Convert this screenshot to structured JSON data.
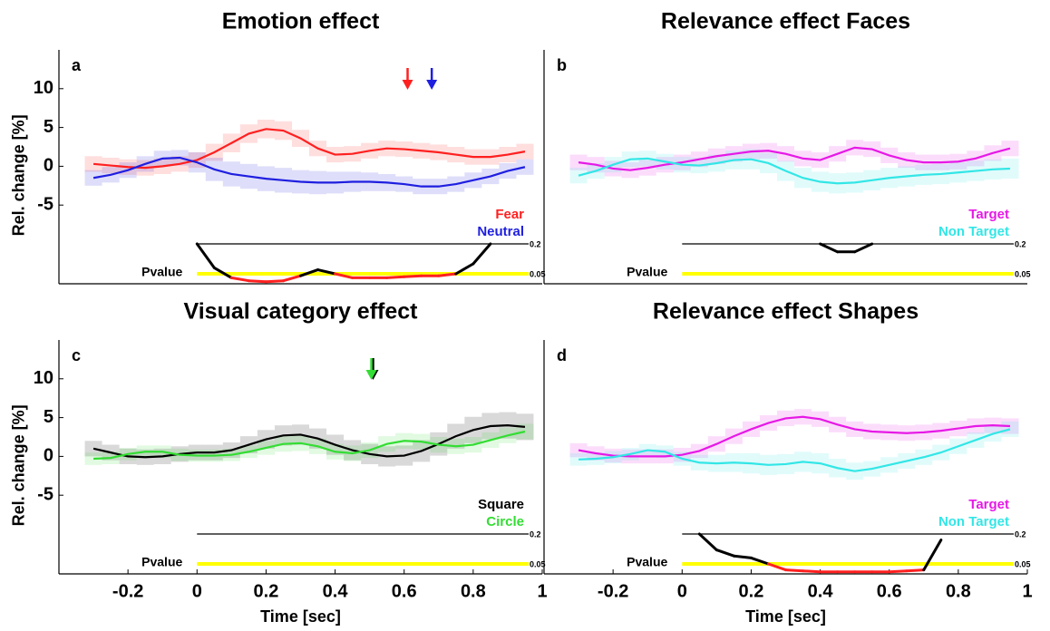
{
  "chart_data": [
    {
      "type": "line",
      "title": "Emotion effect",
      "label": "a",
      "ylabel": "Rel. change [%]",
      "xlim": [
        -0.4,
        1.0
      ],
      "ylim": [
        -10,
        15
      ],
      "yticks": [
        -5,
        0,
        5,
        10
      ],
      "x": [
        -0.3,
        -0.25,
        -0.2,
        -0.15,
        -0.1,
        -0.05,
        0,
        0.05,
        0.1,
        0.15,
        0.2,
        0.25,
        0.3,
        0.35,
        0.4,
        0.45,
        0.5,
        0.55,
        0.6,
        0.65,
        0.7,
        0.75,
        0.8,
        0.85,
        0.9,
        0.95
      ],
      "series": [
        {
          "name": "Fear",
          "color": "#ff2020",
          "values": [
            0.3,
            0.1,
            -0.1,
            -0.2,
            0,
            0.3,
            0.8,
            1.8,
            3,
            4.2,
            4.8,
            4.6,
            3.6,
            2.3,
            1.5,
            1.6,
            2,
            2.3,
            2.2,
            2,
            1.8,
            1.5,
            1.2,
            1.2,
            1.5,
            1.9
          ],
          "errors": [
            1,
            1,
            1,
            1,
            1,
            1,
            1,
            1.1,
            1.2,
            1.2,
            1.2,
            1.2,
            1.1,
            1,
            1,
            1,
            1,
            1,
            1,
            1,
            1,
            1,
            1,
            1,
            1,
            1
          ]
        },
        {
          "name": "Neutral",
          "color": "#1f1fe0",
          "values": [
            -1.5,
            -1.1,
            -0.5,
            0.3,
            1,
            1.1,
            0.5,
            -0.4,
            -1,
            -1.3,
            -1.6,
            -1.8,
            -2,
            -2.1,
            -2.1,
            -2,
            -2,
            -2.1,
            -2.3,
            -2.6,
            -2.6,
            -2.3,
            -1.8,
            -1.3,
            -0.6,
            -0.1
          ],
          "errors": [
            1,
            1,
            1,
            1,
            1,
            1,
            1.3,
            1.5,
            1.6,
            1.6,
            1.6,
            1.6,
            1.5,
            1.5,
            1.4,
            1.3,
            1.2,
            1.1,
            1,
            1,
            1,
            1,
            1,
            1,
            1,
            1
          ]
        }
      ],
      "pvalue": {
        "label": "Pvalue",
        "plim": [
          0.2,
          0
        ],
        "ticks": [
          0.2,
          0.05
        ],
        "line_colors": [
          "#000000",
          "#ffff00"
        ],
        "color": "#000000",
        "sig_color": "#ff2020",
        "values": [
          null,
          null,
          null,
          null,
          null,
          null,
          0.2,
          0.08,
          0.03,
          0.015,
          0.01,
          0.015,
          0.04,
          0.07,
          0.05,
          0.03,
          0.03,
          0.03,
          0.035,
          0.04,
          0.04,
          0.05,
          0.1,
          0.2,
          null,
          null
        ]
      },
      "arrows": [
        {
          "x": 0.61,
          "color": "#ff2020"
        },
        {
          "x": 0.68,
          "color": "#1f1fe0"
        }
      ]
    },
    {
      "type": "line",
      "title": "Relevance effect Faces",
      "label": "b",
      "xlim": [
        -0.4,
        1.0
      ],
      "ylim": [
        -10,
        15
      ],
      "x": [
        -0.3,
        -0.25,
        -0.2,
        -0.15,
        -0.1,
        -0.05,
        0,
        0.05,
        0.1,
        0.15,
        0.2,
        0.25,
        0.3,
        0.35,
        0.4,
        0.45,
        0.5,
        0.55,
        0.6,
        0.65,
        0.7,
        0.75,
        0.8,
        0.85,
        0.9,
        0.95
      ],
      "series": [
        {
          "name": "Target",
          "color": "#e619e6",
          "values": [
            0.5,
            0.2,
            -0.3,
            -0.5,
            -0.2,
            0.2,
            0.5,
            0.9,
            1.3,
            1.6,
            1.9,
            2,
            1.6,
            1,
            0.8,
            1.6,
            2.4,
            2.2,
            1.4,
            0.8,
            0.5,
            0.5,
            0.6,
            1,
            1.7,
            2.3
          ],
          "errors": [
            1,
            1,
            1,
            1,
            1,
            1,
            1,
            1,
            1,
            1,
            1,
            1,
            1,
            1,
            1,
            1,
            1,
            1,
            1,
            1,
            1,
            1,
            1,
            1,
            1,
            1
          ]
        },
        {
          "name": "Non Target",
          "color": "#33e6e6",
          "values": [
            -1.2,
            -0.6,
            0.2,
            0.9,
            1,
            0.6,
            0.2,
            0.1,
            0.4,
            0.8,
            0.9,
            0.4,
            -0.6,
            -1.5,
            -2,
            -2.2,
            -2.1,
            -1.8,
            -1.5,
            -1.3,
            -1.1,
            -1,
            -0.8,
            -0.6,
            -0.4,
            -0.3
          ],
          "errors": [
            1,
            1,
            1,
            1,
            1,
            1,
            1,
            1,
            1.1,
            1.2,
            1.3,
            1.3,
            1.3,
            1.3,
            1.3,
            1.3,
            1.3,
            1.3,
            1.3,
            1.3,
            1.3,
            1.3,
            1.3,
            1.3,
            1.3,
            1.3
          ]
        }
      ],
      "pvalue": {
        "label": "Pvalue",
        "plim": [
          0.2,
          0
        ],
        "ticks": [
          0.2,
          0.05
        ],
        "line_colors": [
          "#000000",
          "#ffff00"
        ],
        "color": "#000000",
        "sig_color": "#ff2020",
        "values": [
          null,
          null,
          null,
          null,
          null,
          null,
          null,
          null,
          null,
          null,
          null,
          null,
          null,
          null,
          0.2,
          0.16,
          0.16,
          0.2,
          null,
          null,
          null,
          null,
          null,
          null,
          null,
          null
        ]
      }
    },
    {
      "type": "line",
      "title": "Visual category effect",
      "label": "c",
      "ylabel": "Rel. change [%]",
      "xlabel": "Time [sec]",
      "xlim": [
        -0.4,
        1.0
      ],
      "ylim": [
        -10,
        15
      ],
      "yticks": [
        -5,
        0,
        5,
        10
      ],
      "xticks": [
        -0.2,
        0,
        0.2,
        0.4,
        0.6,
        0.8,
        1
      ],
      "x": [
        -0.3,
        -0.25,
        -0.2,
        -0.15,
        -0.1,
        -0.05,
        0,
        0.05,
        0.1,
        0.15,
        0.2,
        0.25,
        0.3,
        0.35,
        0.4,
        0.45,
        0.5,
        0.55,
        0.6,
        0.65,
        0.7,
        0.75,
        0.8,
        0.85,
        0.9,
        0.95
      ],
      "series": [
        {
          "name": "Square",
          "color": "#000000",
          "values": [
            1,
            0.5,
            0,
            -0.1,
            0,
            0.3,
            0.5,
            0.5,
            0.8,
            1.5,
            2.2,
            2.7,
            2.8,
            2.3,
            1.5,
            0.8,
            0.3,
            0,
            0.1,
            0.7,
            1.6,
            2.6,
            3.4,
            3.9,
            4,
            3.8
          ],
          "errors": [
            1,
            1,
            1,
            1,
            1,
            1,
            1,
            1,
            1,
            1.1,
            1.2,
            1.3,
            1.3,
            1.3,
            1.3,
            1.3,
            1.3,
            1.3,
            1.3,
            1.4,
            1.5,
            1.6,
            1.7,
            1.7,
            1.7,
            1.7
          ]
        },
        {
          "name": "Circle",
          "color": "#33dd33",
          "values": [
            -0.3,
            -0.2,
            0.3,
            0.6,
            0.6,
            0.2,
            0.1,
            0.1,
            0.2,
            0.6,
            1.1,
            1.6,
            1.7,
            1.3,
            0.6,
            0.4,
            0.8,
            1.6,
            2,
            1.9,
            1.5,
            1.3,
            1.5,
            2.1,
            2.7,
            3.2
          ],
          "errors": [
            0.8,
            0.8,
            0.8,
            0.8,
            0.8,
            0.8,
            0.8,
            0.8,
            0.8,
            0.8,
            0.9,
            1,
            1,
            1,
            1,
            1,
            1,
            1,
            1,
            1,
            1,
            1,
            1,
            1,
            1,
            1
          ]
        }
      ],
      "pvalue": {
        "label": "Pvalue",
        "plim": [
          0.2,
          0
        ],
        "ticks": [
          0.2,
          0.05
        ],
        "line_colors": [
          "#000000",
          "#ffff00"
        ],
        "color": "#000000",
        "sig_color": "#ff2020"
      },
      "arrows": [
        {
          "x": 0.51,
          "color": "#000000"
        },
        {
          "x": 0.505,
          "color": "#33dd33"
        }
      ]
    },
    {
      "type": "line",
      "title": "Relevance effect Shapes",
      "label": "d",
      "xlabel": "Time [sec]",
      "xlim": [
        -0.4,
        1.0
      ],
      "ylim": [
        -10,
        15
      ],
      "xticks": [
        -0.2,
        0,
        0.2,
        0.4,
        0.6,
        0.8,
        1
      ],
      "x": [
        -0.3,
        -0.25,
        -0.2,
        -0.15,
        -0.1,
        -0.05,
        0,
        0.05,
        0.1,
        0.15,
        0.2,
        0.25,
        0.3,
        0.35,
        0.4,
        0.45,
        0.5,
        0.55,
        0.6,
        0.65,
        0.7,
        0.75,
        0.8,
        0.85,
        0.9,
        0.95
      ],
      "series": [
        {
          "name": "Target",
          "color": "#e619e6",
          "values": [
            0.8,
            0.4,
            0.1,
            0,
            0,
            0,
            0.2,
            0.7,
            1.6,
            2.6,
            3.5,
            4.3,
            4.9,
            5.1,
            4.8,
            4.1,
            3.5,
            3.2,
            3.1,
            3,
            3.1,
            3.3,
            3.6,
            3.9,
            4,
            3.9
          ],
          "errors": [
            0.9,
            0.9,
            0.9,
            0.9,
            0.9,
            0.9,
            0.9,
            0.9,
            1,
            1,
            1,
            1,
            1,
            1,
            1,
            1,
            1,
            1,
            1,
            1,
            1,
            1,
            1,
            1,
            1,
            1
          ]
        },
        {
          "name": "Non Target",
          "color": "#33e6e6",
          "values": [
            -0.4,
            -0.3,
            -0.1,
            0.3,
            0.8,
            0.6,
            -0.3,
            -0.8,
            -0.9,
            -0.8,
            -0.9,
            -1.1,
            -1,
            -0.7,
            -0.9,
            -1.5,
            -1.9,
            -1.6,
            -1.1,
            -0.6,
            -0.1,
            0.5,
            1.3,
            2.1,
            2.9,
            3.5
          ],
          "errors": [
            0.8,
            0.8,
            0.8,
            0.8,
            0.8,
            0.8,
            0.9,
            1,
            1.1,
            1.2,
            1.3,
            1.3,
            1.3,
            1.3,
            1.3,
            1.2,
            1.1,
            1,
            1,
            1,
            1,
            1,
            1,
            1,
            1,
            1
          ]
        }
      ],
      "pvalue": {
        "label": "Pvalue",
        "plim": [
          0.2,
          0
        ],
        "ticks": [
          0.2,
          0.05
        ],
        "line_colors": [
          "#000000",
          "#ffff00"
        ],
        "color": "#000000",
        "sig_color": "#ff2020",
        "values": [
          null,
          null,
          null,
          null,
          null,
          null,
          null,
          0.2,
          0.12,
          0.09,
          0.08,
          0.05,
          0.02,
          0.015,
          0.01,
          0.01,
          0.01,
          0.01,
          0.01,
          0.015,
          0.02,
          0.17,
          null,
          null,
          null,
          null
        ]
      }
    }
  ]
}
